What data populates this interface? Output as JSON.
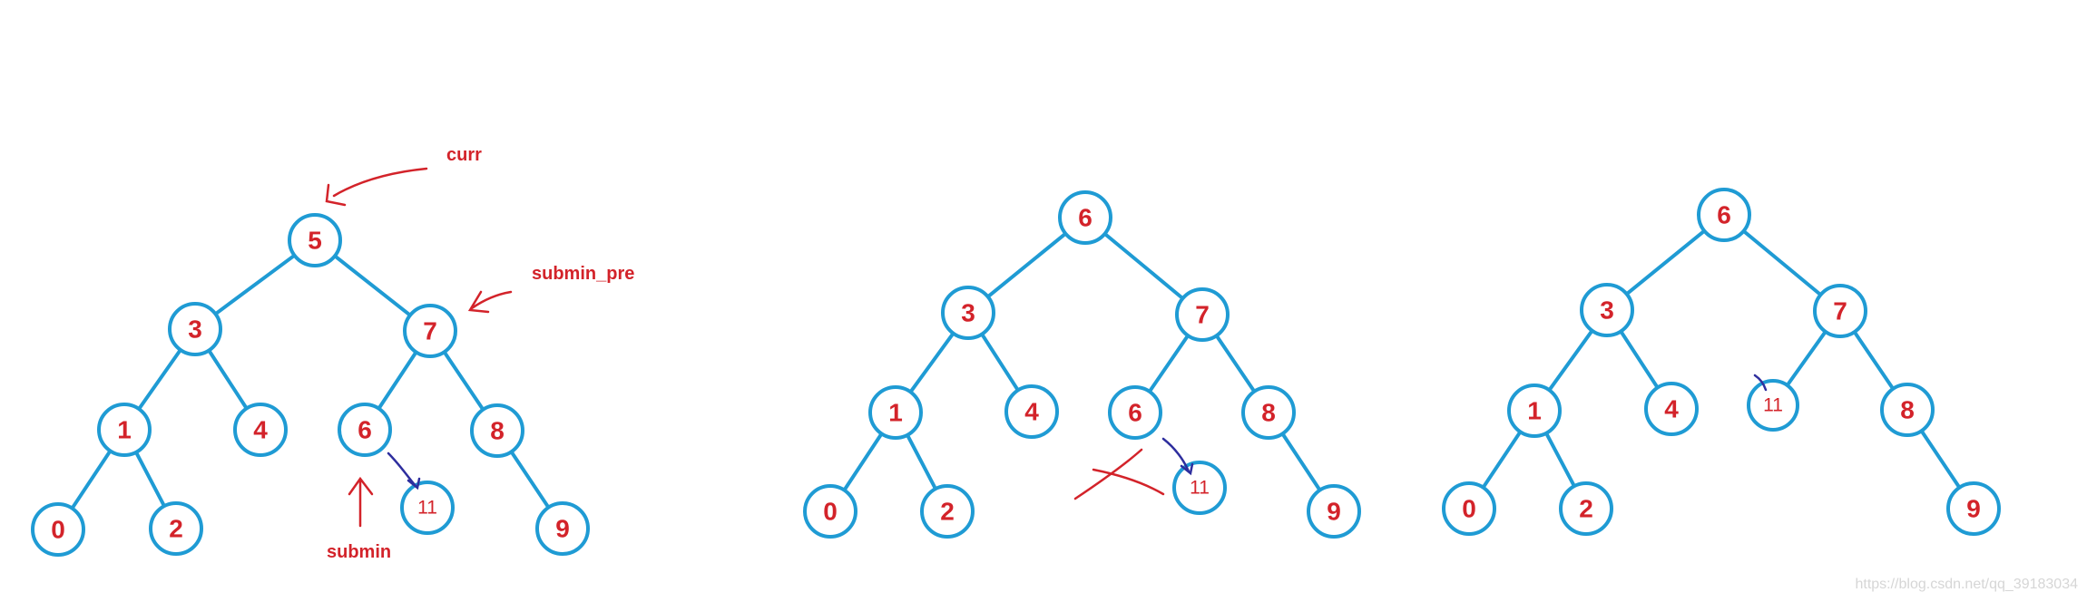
{
  "colors": {
    "node_stroke": "#1f9bd4",
    "label": "#d3232a",
    "annotation": "#d3232a",
    "arrow_blue": "#2e2e9e"
  },
  "trees": [
    {
      "id": "tree-before",
      "nodes": [
        {
          "id": "n5",
          "label": "5"
        },
        {
          "id": "n3",
          "label": "3"
        },
        {
          "id": "n7",
          "label": "7"
        },
        {
          "id": "n1",
          "label": "1"
        },
        {
          "id": "n4",
          "label": "4"
        },
        {
          "id": "n6",
          "label": "6"
        },
        {
          "id": "n8",
          "label": "8"
        },
        {
          "id": "n0",
          "label": "0"
        },
        {
          "id": "n2",
          "label": "2"
        },
        {
          "id": "n11",
          "label": "11"
        },
        {
          "id": "n9",
          "label": "9"
        }
      ],
      "edges": [
        [
          "n5",
          "n3"
        ],
        [
          "n5",
          "n7"
        ],
        [
          "n3",
          "n1"
        ],
        [
          "n3",
          "n4"
        ],
        [
          "n7",
          "n6"
        ],
        [
          "n7",
          "n8"
        ],
        [
          "n1",
          "n0"
        ],
        [
          "n1",
          "n2"
        ],
        [
          "n8",
          "n9"
        ]
      ],
      "annotations": [
        {
          "id": "curr",
          "text": "curr"
        },
        {
          "id": "submin_pre",
          "text": "submin_pre"
        },
        {
          "id": "submin",
          "text": "submin"
        }
      ]
    },
    {
      "id": "tree-middle",
      "nodes": [
        {
          "id": "m6",
          "label": "6"
        },
        {
          "id": "m3",
          "label": "3"
        },
        {
          "id": "m7",
          "label": "7"
        },
        {
          "id": "m1",
          "label": "1"
        },
        {
          "id": "m4",
          "label": "4"
        },
        {
          "id": "m6b",
          "label": "6"
        },
        {
          "id": "m8",
          "label": "8"
        },
        {
          "id": "m0",
          "label": "0"
        },
        {
          "id": "m2",
          "label": "2"
        },
        {
          "id": "m11",
          "label": "11"
        },
        {
          "id": "m9",
          "label": "9"
        }
      ],
      "edges": [
        [
          "m6",
          "m3"
        ],
        [
          "m6",
          "m7"
        ],
        [
          "m3",
          "m1"
        ],
        [
          "m3",
          "m4"
        ],
        [
          "m7",
          "m6b"
        ],
        [
          "m7",
          "m8"
        ],
        [
          "m1",
          "m0"
        ],
        [
          "m1",
          "m2"
        ],
        [
          "m8",
          "m9"
        ]
      ]
    },
    {
      "id": "tree-after",
      "nodes": [
        {
          "id": "a6",
          "label": "6"
        },
        {
          "id": "a3",
          "label": "3"
        },
        {
          "id": "a7",
          "label": "7"
        },
        {
          "id": "a1",
          "label": "1"
        },
        {
          "id": "a4",
          "label": "4"
        },
        {
          "id": "a11",
          "label": "11"
        },
        {
          "id": "a8",
          "label": "8"
        },
        {
          "id": "a0",
          "label": "0"
        },
        {
          "id": "a2",
          "label": "2"
        },
        {
          "id": "a9",
          "label": "9"
        }
      ],
      "edges": [
        [
          "a6",
          "a3"
        ],
        [
          "a6",
          "a7"
        ],
        [
          "a3",
          "a1"
        ],
        [
          "a3",
          "a4"
        ],
        [
          "a7",
          "a11"
        ],
        [
          "a7",
          "a8"
        ],
        [
          "a1",
          "a0"
        ],
        [
          "a1",
          "a2"
        ],
        [
          "a8",
          "a9"
        ]
      ]
    }
  ],
  "watermark": "https://blog.csdn.net/qq_39183034"
}
